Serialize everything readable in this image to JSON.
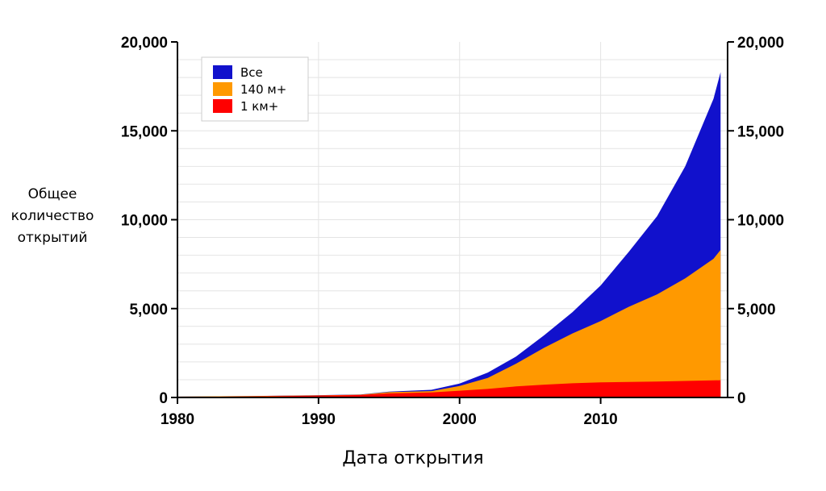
{
  "chart_data": {
    "type": "area",
    "xlabel": "Дата открытия",
    "ylabel_lines": [
      "Общее",
      "количество",
      "открытий"
    ],
    "xlim": [
      1980,
      2019
    ],
    "ylim": [
      0,
      20000
    ],
    "x_ticks": [
      1980,
      1990,
      2000,
      2010
    ],
    "x_tick_labels": [
      "1980",
      "1990",
      "2000",
      "2010"
    ],
    "y_ticks": [
      0,
      5000,
      10000,
      15000,
      20000
    ],
    "y_tick_labels": [
      "0",
      "5,000",
      "10,000",
      "15,000",
      "20,000"
    ],
    "grid": true,
    "legend_position": "top-left",
    "x": [
      1980,
      1985,
      1990,
      1993,
      1995,
      1998,
      2000,
      2002,
      2004,
      2006,
      2008,
      2010,
      2012,
      2014,
      2016,
      2018,
      2018.5
    ],
    "series": [
      {
        "name": "Все",
        "color": "#1111cc",
        "values": [
          50,
          80,
          130,
          170,
          330,
          430,
          780,
          1400,
          2300,
          3500,
          4800,
          6300,
          8200,
          10200,
          13000,
          16800,
          18300
        ]
      },
      {
        "name": "140 м+",
        "color": "#ff9900",
        "values": [
          50,
          75,
          120,
          160,
          300,
          360,
          650,
          1100,
          1900,
          2800,
          3600,
          4300,
          5100,
          5800,
          6700,
          7800,
          8300
        ]
      },
      {
        "name": "1 км+",
        "color": "#ff0000",
        "values": [
          40,
          60,
          100,
          140,
          230,
          280,
          380,
          480,
          620,
          720,
          800,
          850,
          870,
          900,
          930,
          960,
          970
        ]
      }
    ]
  }
}
